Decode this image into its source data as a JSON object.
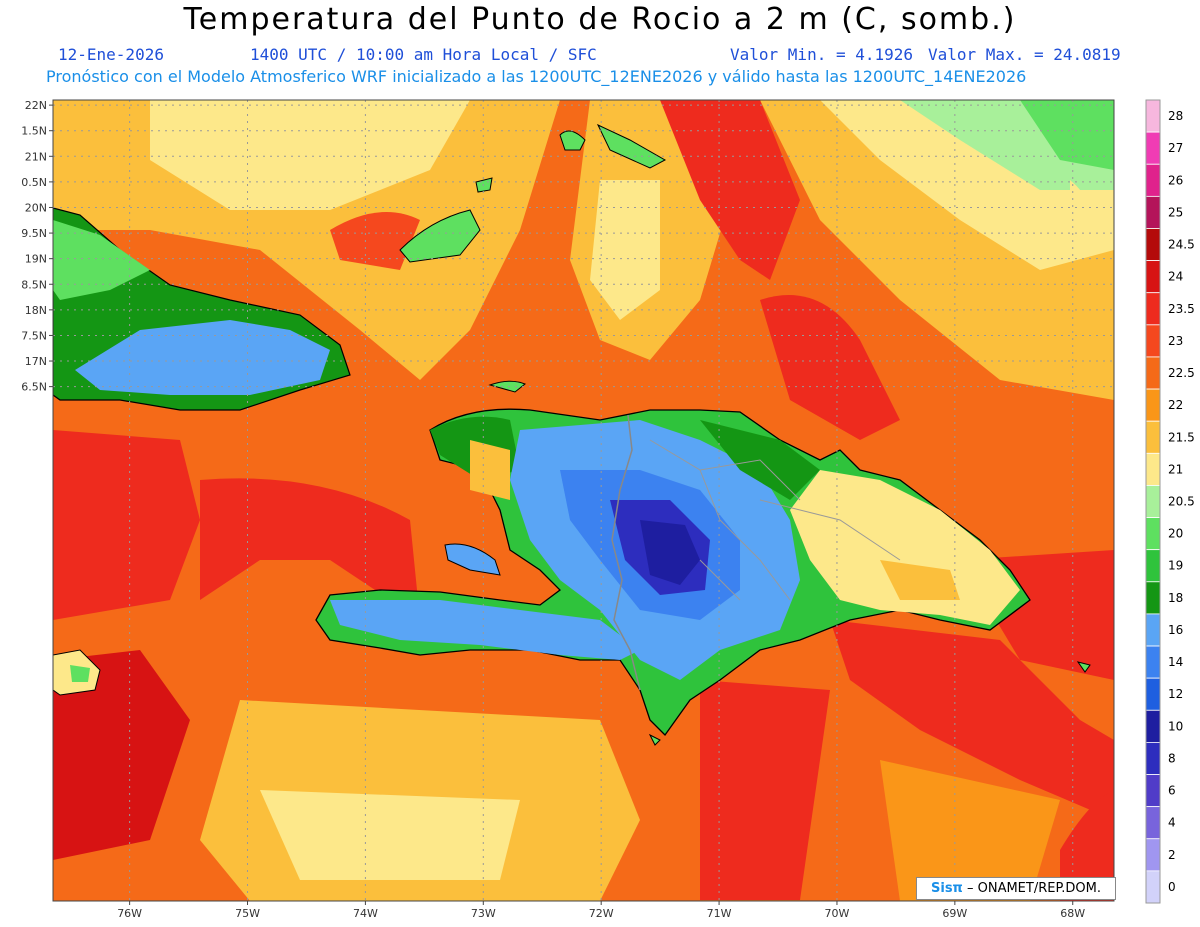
{
  "title": "Temperatura del Punto de Rocio a 2 m (C, somb.)",
  "subtitle_date": "12-Ene-2026",
  "subtitle_time": "1400 UTC / 10:00 am Hora Local / SFC",
  "subtitle_min": "Valor Min. = 4.1926",
  "subtitle_max": "Valor Max. = 24.0819",
  "subtitle_model": "Pronóstico con el Modelo Atmosferico WRF inicializado a las 1200UTC_12ENE2026 y válido hasta las  1200UTC_14ENE2026",
  "credit_brand": "Sisπ",
  "credit_text": " – ONAMET/REP.DOM.",
  "map_extent": {
    "lon_min": -76.65,
    "lon_max": -67.65,
    "lat_min": 6.45,
    "lat_max": 22.1
  },
  "lat_axis": {
    "values": [
      22,
      21.5,
      21,
      20.5,
      20,
      19.5,
      19,
      18.5,
      18,
      17.5,
      17,
      16.5
    ],
    "labels": [
      "22N",
      "1.5N",
      "21N",
      "0.5N",
      "20N",
      "9.5N",
      "19N",
      "8.5N",
      "18N",
      "7.5N",
      "17N",
      "6.5N"
    ]
  },
  "lon_axis": {
    "values": [
      -76,
      -75,
      -74,
      -73,
      -72,
      -71,
      -70,
      -69,
      -68
    ],
    "labels": [
      "76W",
      "75W",
      "74W",
      "73W",
      "72W",
      "71W",
      "70W",
      "69W",
      "68W"
    ]
  },
  "colorbar": {
    "labels": [
      "28",
      "27",
      "26",
      "25",
      "24.5",
      "24",
      "23.5",
      "23",
      "22.5",
      "22",
      "21.5",
      "21",
      "20.5",
      "20",
      "19",
      "18",
      "16",
      "14",
      "12",
      "10",
      "8",
      "6",
      "4",
      "2",
      "0"
    ],
    "colors": [
      "#f7b7de",
      "#f03cb4",
      "#e0228c",
      "#b4145a",
      "#b40a0a",
      "#d71313",
      "#ee2b1e",
      "#f5481e",
      "#f56a18",
      "#fa9618",
      "#fbbf3c",
      "#fde88a",
      "#a8f09a",
      "#5ee060",
      "#2fc33c",
      "#149614",
      "#5aa5f5",
      "#3c82f0",
      "#1e5fe0",
      "#1e1ea0",
      "#2d2dbe",
      "#503cc8",
      "#7864dc",
      "#a096f0",
      "#d2d2fa"
    ]
  },
  "legend": {
    "dark_red": "#d71313",
    "red": "#ee2b1e",
    "red_orange": "#f5481e",
    "orange": "#fa9618",
    "light_orange": "#fbbf3c",
    "yellow": "#fde88a",
    "light_green": "#a8f09a",
    "green": "#5ee060",
    "mid_green": "#2fc33c",
    "dark_green": "#149614",
    "light_blue": "#5aa5f5",
    "blue": "#3c82f0",
    "dark_blue": "#1e5fe0",
    "purple": "#2d2dbe",
    "navy": "#1e1ea0"
  }
}
